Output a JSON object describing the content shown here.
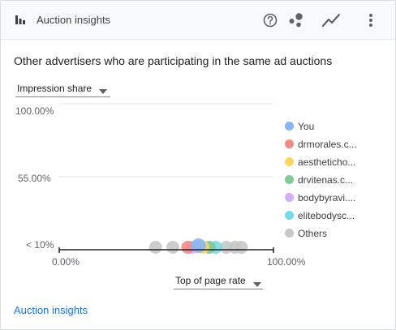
{
  "header": {
    "title": "Auction insights",
    "icons": {
      "card": "bar-chart-icon",
      "help": "help-icon",
      "scatter": "scatter-chart-icon",
      "line": "line-chart-icon",
      "more": "more-vert-icon"
    }
  },
  "subtitle": "Other advertisers who are participating in the same ad auctions",
  "metric_select": {
    "value": "Impression share"
  },
  "xaxis_select": {
    "value": "Top of page rate"
  },
  "chart_data": {
    "type": "scatter",
    "y_ticks": [
      "100.00%",
      "55.00%",
      "< 10%"
    ],
    "x_ticks": [
      "0.00%",
      "100.00%"
    ],
    "xlim": [
      0,
      100
    ],
    "ylim": [
      10,
      100
    ],
    "series": [
      {
        "name": "You",
        "color": "#8ab4f8",
        "x": [
          65
        ],
        "y": [
          11
        ]
      },
      {
        "name": "drmorales.c...",
        "color": "#f28b82",
        "x": [
          60
        ],
        "y": [
          10
        ]
      },
      {
        "name": "aestheticho...",
        "color": "#fdd663",
        "x": [
          67
        ],
        "y": [
          10
        ]
      },
      {
        "name": "drvitenas.c...",
        "color": "#81c995",
        "x": [
          70
        ],
        "y": [
          10
        ]
      },
      {
        "name": "bodybyravi....",
        "color": "#d7aefb",
        "x": [
          62
        ],
        "y": [
          10
        ]
      },
      {
        "name": "elitebodysc...",
        "color": "#78d9ec",
        "x": [
          73
        ],
        "y": [
          10
        ]
      },
      {
        "name": "Others",
        "color": "#c8c8c8",
        "x": [
          45,
          53,
          78,
          82,
          85
        ],
        "y": [
          10,
          10,
          10,
          10,
          10
        ]
      }
    ]
  },
  "footer": {
    "link": "Auction insights"
  }
}
